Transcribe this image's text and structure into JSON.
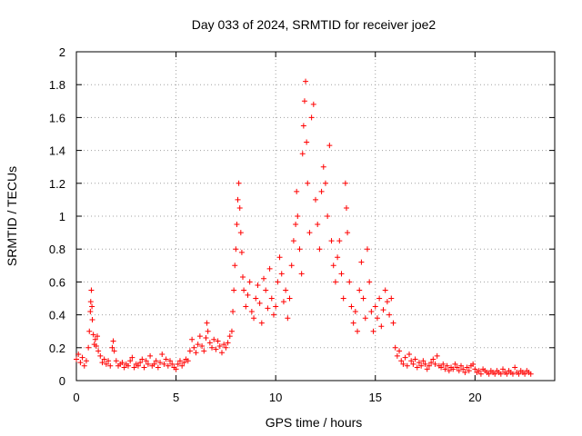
{
  "chart_data": {
    "type": "scatter",
    "title": "Day 033 of 2024, SRMTID for receiver joe2",
    "xlabel": "GPS time / hours",
    "ylabel": "SRMTID / TECUs",
    "xlim": [
      0,
      24
    ],
    "ylim": [
      0,
      2
    ],
    "xticks": [
      0,
      5,
      10,
      15,
      20
    ],
    "yticks": [
      0,
      0.2,
      0.4,
      0.6,
      0.8,
      1,
      1.2,
      1.4,
      1.6,
      1.8,
      2
    ],
    "grid": true,
    "marker": "+",
    "color": "#ff0000",
    "series": [
      {
        "name": "SRMTID",
        "points": [
          [
            0.0,
            0.13
          ],
          [
            0.1,
            0.16
          ],
          [
            0.2,
            0.11
          ],
          [
            0.3,
            0.14
          ],
          [
            0.4,
            0.09
          ],
          [
            0.5,
            0.12
          ],
          [
            0.6,
            0.2
          ],
          [
            0.65,
            0.3
          ],
          [
            0.7,
            0.42
          ],
          [
            0.72,
            0.48
          ],
          [
            0.75,
            0.55
          ],
          [
            0.78,
            0.45
          ],
          [
            0.8,
            0.37
          ],
          [
            0.85,
            0.28
          ],
          [
            0.9,
            0.22
          ],
          [
            0.95,
            0.25
          ],
          [
            1.0,
            0.21
          ],
          [
            1.05,
            0.27
          ],
          [
            1.1,
            0.18
          ],
          [
            1.2,
            0.15
          ],
          [
            1.3,
            0.11
          ],
          [
            1.4,
            0.13
          ],
          [
            1.5,
            0.1
          ],
          [
            1.6,
            0.12
          ],
          [
            1.7,
            0.09
          ],
          [
            1.8,
            0.2
          ],
          [
            1.85,
            0.24
          ],
          [
            1.9,
            0.18
          ],
          [
            2.0,
            0.12
          ],
          [
            2.1,
            0.09
          ],
          [
            2.2,
            0.1
          ],
          [
            2.3,
            0.11
          ],
          [
            2.4,
            0.08
          ],
          [
            2.5,
            0.1
          ],
          [
            2.6,
            0.09
          ],
          [
            2.7,
            0.12
          ],
          [
            2.8,
            0.14
          ],
          [
            2.9,
            0.08
          ],
          [
            3.0,
            0.1
          ],
          [
            3.1,
            0.09
          ],
          [
            3.2,
            0.11
          ],
          [
            3.3,
            0.13
          ],
          [
            3.4,
            0.08
          ],
          [
            3.5,
            0.12
          ],
          [
            3.6,
            0.1
          ],
          [
            3.7,
            0.15
          ],
          [
            3.8,
            0.09
          ],
          [
            3.9,
            0.1
          ],
          [
            4.0,
            0.12
          ],
          [
            4.1,
            0.08
          ],
          [
            4.2,
            0.11
          ],
          [
            4.3,
            0.16
          ],
          [
            4.4,
            0.1
          ],
          [
            4.5,
            0.13
          ],
          [
            4.6,
            0.09
          ],
          [
            4.7,
            0.12
          ],
          [
            4.8,
            0.1
          ],
          [
            4.9,
            0.08
          ],
          [
            5.0,
            0.07
          ],
          [
            5.1,
            0.1
          ],
          [
            5.2,
            0.12
          ],
          [
            5.3,
            0.09
          ],
          [
            5.4,
            0.11
          ],
          [
            5.5,
            0.13
          ],
          [
            5.6,
            0.12
          ],
          [
            5.7,
            0.18
          ],
          [
            5.8,
            0.25
          ],
          [
            5.9,
            0.2
          ],
          [
            6.0,
            0.17
          ],
          [
            6.1,
            0.22
          ],
          [
            6.2,
            0.27
          ],
          [
            6.3,
            0.21
          ],
          [
            6.4,
            0.18
          ],
          [
            6.5,
            0.26
          ],
          [
            6.55,
            0.35
          ],
          [
            6.6,
            0.3
          ],
          [
            6.7,
            0.23
          ],
          [
            6.8,
            0.2
          ],
          [
            6.9,
            0.25
          ],
          [
            7.0,
            0.19
          ],
          [
            7.1,
            0.24
          ],
          [
            7.2,
            0.21
          ],
          [
            7.3,
            0.17
          ],
          [
            7.4,
            0.22
          ],
          [
            7.5,
            0.2
          ],
          [
            7.6,
            0.23
          ],
          [
            7.7,
            0.27
          ],
          [
            7.8,
            0.3
          ],
          [
            7.85,
            0.42
          ],
          [
            7.9,
            0.55
          ],
          [
            7.95,
            0.7
          ],
          [
            8.0,
            0.8
          ],
          [
            8.05,
            0.95
          ],
          [
            8.1,
            1.1
          ],
          [
            8.15,
            1.2
          ],
          [
            8.2,
            1.05
          ],
          [
            8.25,
            0.9
          ],
          [
            8.3,
            0.78
          ],
          [
            8.35,
            0.63
          ],
          [
            8.4,
            0.55
          ],
          [
            8.5,
            0.45
          ],
          [
            8.6,
            0.52
          ],
          [
            8.7,
            0.6
          ],
          [
            8.8,
            0.42
          ],
          [
            8.9,
            0.38
          ],
          [
            9.0,
            0.5
          ],
          [
            9.1,
            0.58
          ],
          [
            9.2,
            0.47
          ],
          [
            9.3,
            0.35
          ],
          [
            9.4,
            0.62
          ],
          [
            9.5,
            0.55
          ],
          [
            9.6,
            0.44
          ],
          [
            9.7,
            0.68
          ],
          [
            9.8,
            0.5
          ],
          [
            9.9,
            0.4
          ],
          [
            10.0,
            0.45
          ],
          [
            10.1,
            0.6
          ],
          [
            10.2,
            0.75
          ],
          [
            10.3,
            0.65
          ],
          [
            10.4,
            0.48
          ],
          [
            10.5,
            0.55
          ],
          [
            10.6,
            0.38
          ],
          [
            10.7,
            0.5
          ],
          [
            10.8,
            0.7
          ],
          [
            10.9,
            0.85
          ],
          [
            11.0,
            0.95
          ],
          [
            11.05,
            1.15
          ],
          [
            11.1,
            1.0
          ],
          [
            11.2,
            0.8
          ],
          [
            11.3,
            0.65
          ],
          [
            11.35,
            1.38
          ],
          [
            11.4,
            1.55
          ],
          [
            11.45,
            1.7
          ],
          [
            11.5,
            1.82
          ],
          [
            11.55,
            1.45
          ],
          [
            11.6,
            1.2
          ],
          [
            11.7,
            0.9
          ],
          [
            11.8,
            1.6
          ],
          [
            11.9,
            1.68
          ],
          [
            12.0,
            1.1
          ],
          [
            12.1,
            0.95
          ],
          [
            12.2,
            0.8
          ],
          [
            12.3,
            1.15
          ],
          [
            12.4,
            1.3
          ],
          [
            12.5,
            1.2
          ],
          [
            12.6,
            1.0
          ],
          [
            12.7,
            1.43
          ],
          [
            12.8,
            0.85
          ],
          [
            12.9,
            0.7
          ],
          [
            13.0,
            0.6
          ],
          [
            13.1,
            0.75
          ],
          [
            13.2,
            0.85
          ],
          [
            13.3,
            0.65
          ],
          [
            13.4,
            0.5
          ],
          [
            13.5,
            1.2
          ],
          [
            13.55,
            1.05
          ],
          [
            13.6,
            0.9
          ],
          [
            13.7,
            0.6
          ],
          [
            13.8,
            0.45
          ],
          [
            13.9,
            0.35
          ],
          [
            14.0,
            0.42
          ],
          [
            14.1,
            0.3
          ],
          [
            14.2,
            0.55
          ],
          [
            14.3,
            0.72
          ],
          [
            14.4,
            0.5
          ],
          [
            14.5,
            0.38
          ],
          [
            14.6,
            0.8
          ],
          [
            14.7,
            0.6
          ],
          [
            14.8,
            0.42
          ],
          [
            14.9,
            0.3
          ],
          [
            15.0,
            0.45
          ],
          [
            15.1,
            0.38
          ],
          [
            15.2,
            0.5
          ],
          [
            15.3,
            0.33
          ],
          [
            15.4,
            0.43
          ],
          [
            15.5,
            0.55
          ],
          [
            15.6,
            0.48
          ],
          [
            15.7,
            0.4
          ],
          [
            15.8,
            0.5
          ],
          [
            15.9,
            0.35
          ],
          [
            16.0,
            0.2
          ],
          [
            16.1,
            0.15
          ],
          [
            16.2,
            0.18
          ],
          [
            16.3,
            0.12
          ],
          [
            16.4,
            0.1
          ],
          [
            16.5,
            0.14
          ],
          [
            16.6,
            0.09
          ],
          [
            16.7,
            0.16
          ],
          [
            16.8,
            0.12
          ],
          [
            16.9,
            0.1
          ],
          [
            17.0,
            0.13
          ],
          [
            17.1,
            0.08
          ],
          [
            17.2,
            0.11
          ],
          [
            17.3,
            0.09
          ],
          [
            17.4,
            0.12
          ],
          [
            17.5,
            0.1
          ],
          [
            17.6,
            0.07
          ],
          [
            17.7,
            0.09
          ],
          [
            17.8,
            0.11
          ],
          [
            17.9,
            0.13
          ],
          [
            18.0,
            0.1
          ],
          [
            18.1,
            0.15
          ],
          [
            18.2,
            0.09
          ],
          [
            18.3,
            0.08
          ],
          [
            18.4,
            0.1
          ],
          [
            18.5,
            0.07
          ],
          [
            18.6,
            0.09
          ],
          [
            18.7,
            0.06
          ],
          [
            18.8,
            0.08
          ],
          [
            18.9,
            0.07
          ],
          [
            19.0,
            0.1
          ],
          [
            19.1,
            0.08
          ],
          [
            19.2,
            0.06
          ],
          [
            19.3,
            0.09
          ],
          [
            19.4,
            0.07
          ],
          [
            19.5,
            0.05
          ],
          [
            19.6,
            0.08
          ],
          [
            19.7,
            0.06
          ],
          [
            19.8,
            0.09
          ],
          [
            19.9,
            0.1
          ],
          [
            20.0,
            0.07
          ],
          [
            20.1,
            0.05
          ],
          [
            20.2,
            0.06
          ],
          [
            20.3,
            0.04
          ],
          [
            20.4,
            0.07
          ],
          [
            20.5,
            0.06
          ],
          [
            20.6,
            0.05
          ],
          [
            20.7,
            0.04
          ],
          [
            20.8,
            0.06
          ],
          [
            20.9,
            0.05
          ],
          [
            21.0,
            0.04
          ],
          [
            21.1,
            0.06
          ],
          [
            21.2,
            0.05
          ],
          [
            21.3,
            0.04
          ],
          [
            21.4,
            0.07
          ],
          [
            21.5,
            0.05
          ],
          [
            21.6,
            0.04
          ],
          [
            21.7,
            0.06
          ],
          [
            21.8,
            0.05
          ],
          [
            21.9,
            0.04
          ],
          [
            22.0,
            0.08
          ],
          [
            22.1,
            0.05
          ],
          [
            22.2,
            0.04
          ],
          [
            22.3,
            0.06
          ],
          [
            22.4,
            0.05
          ],
          [
            22.5,
            0.04
          ],
          [
            22.6,
            0.06
          ],
          [
            22.7,
            0.05
          ],
          [
            22.8,
            0.04
          ]
        ]
      }
    ]
  }
}
